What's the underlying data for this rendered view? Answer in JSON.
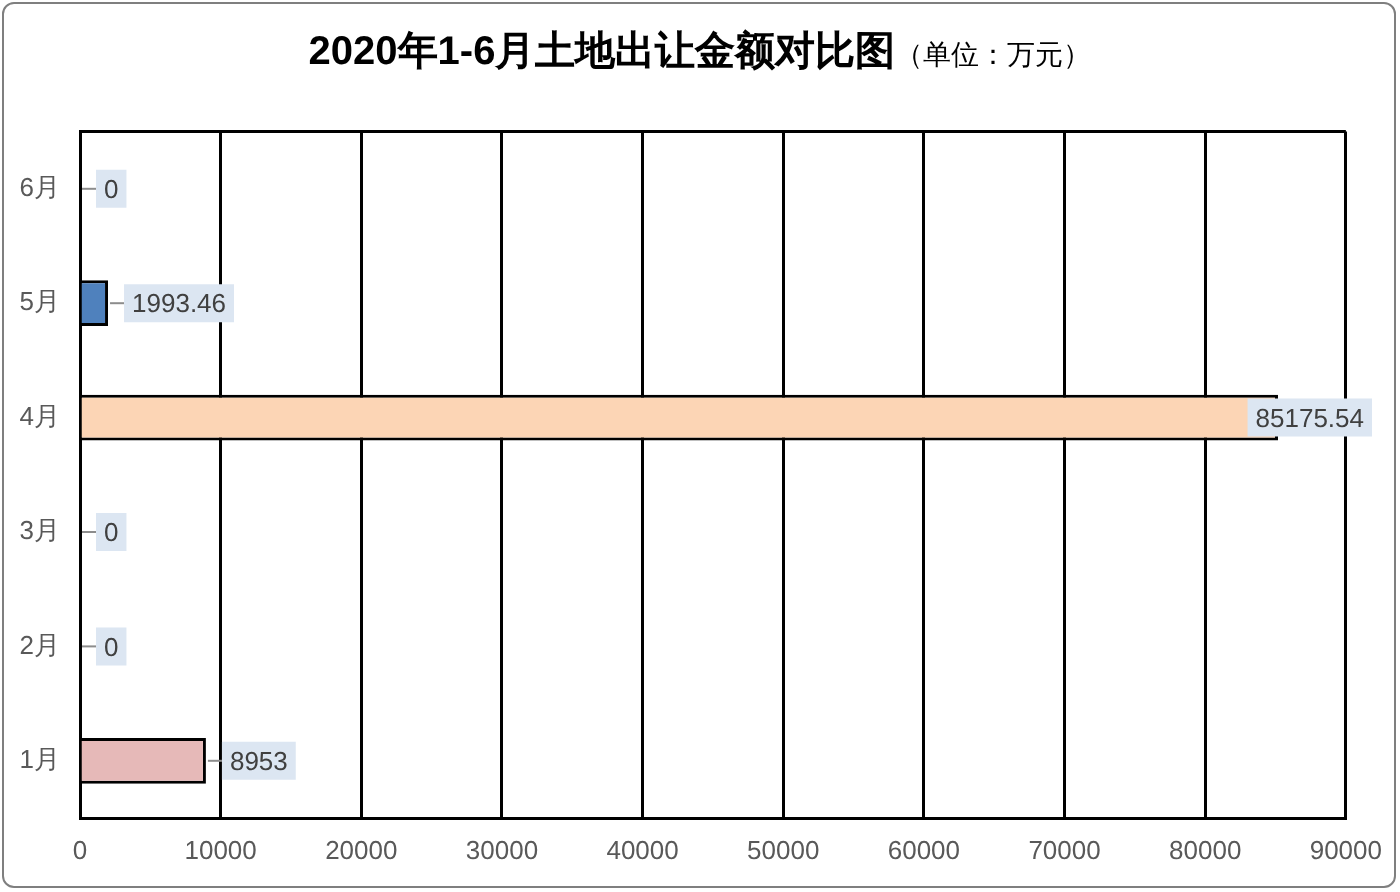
{
  "chart_data": {
    "type": "bar",
    "title": "2020年1-6月土地出让金额对比图",
    "subtitle": "（单位：万元）",
    "orientation": "horizontal",
    "categories": [
      "6月",
      "5月",
      "4月",
      "3月",
      "2月",
      "1月"
    ],
    "values": [
      0,
      1993.46,
      85175.54,
      0,
      0,
      8953
    ],
    "colors": [
      "#4f81bd",
      "#4f81bd",
      "#fcd5b5",
      "#4f81bd",
      "#4f81bd",
      "#e6b9b8"
    ],
    "xlim": [
      0,
      90000
    ],
    "xticks": [
      0,
      10000,
      20000,
      30000,
      40000,
      50000,
      60000,
      70000,
      80000,
      90000
    ],
    "grid": "x",
    "data_labels": true
  }
}
